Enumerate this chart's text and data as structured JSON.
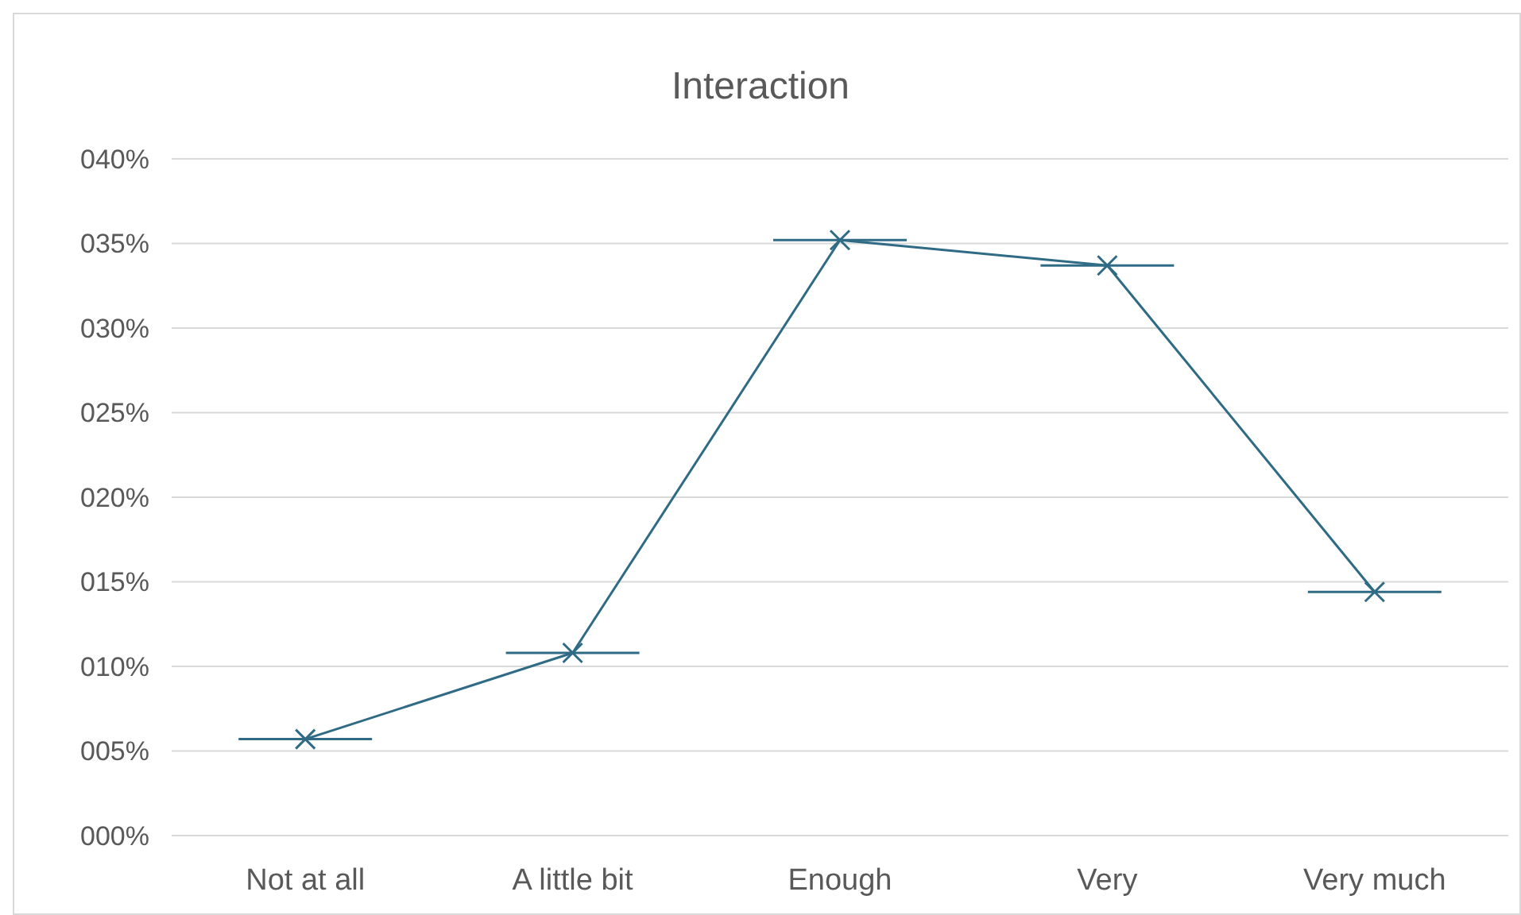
{
  "chart_data": {
    "type": "line",
    "title": "Interaction",
    "categories": [
      "Not at all",
      "A little bit",
      "Enough",
      "Very",
      "Very much"
    ],
    "series": [
      {
        "color": "#2f6b84",
        "values": [
          5.7,
          10.8,
          35.2,
          33.7,
          14.4
        ]
      }
    ],
    "ylim": [
      0,
      40
    ],
    "yticks": [
      {
        "value": 0,
        "label": "000%"
      },
      {
        "value": 5,
        "label": "005%"
      },
      {
        "value": 10,
        "label": "010%"
      },
      {
        "value": 15,
        "label": "015%"
      },
      {
        "value": 20,
        "label": "020%"
      },
      {
        "value": 25,
        "label": "025%"
      },
      {
        "value": 30,
        "label": "030%"
      },
      {
        "value": 35,
        "label": "035%"
      },
      {
        "value": 40,
        "label": "040%"
      }
    ],
    "grid": "y",
    "marker": "cross"
  }
}
